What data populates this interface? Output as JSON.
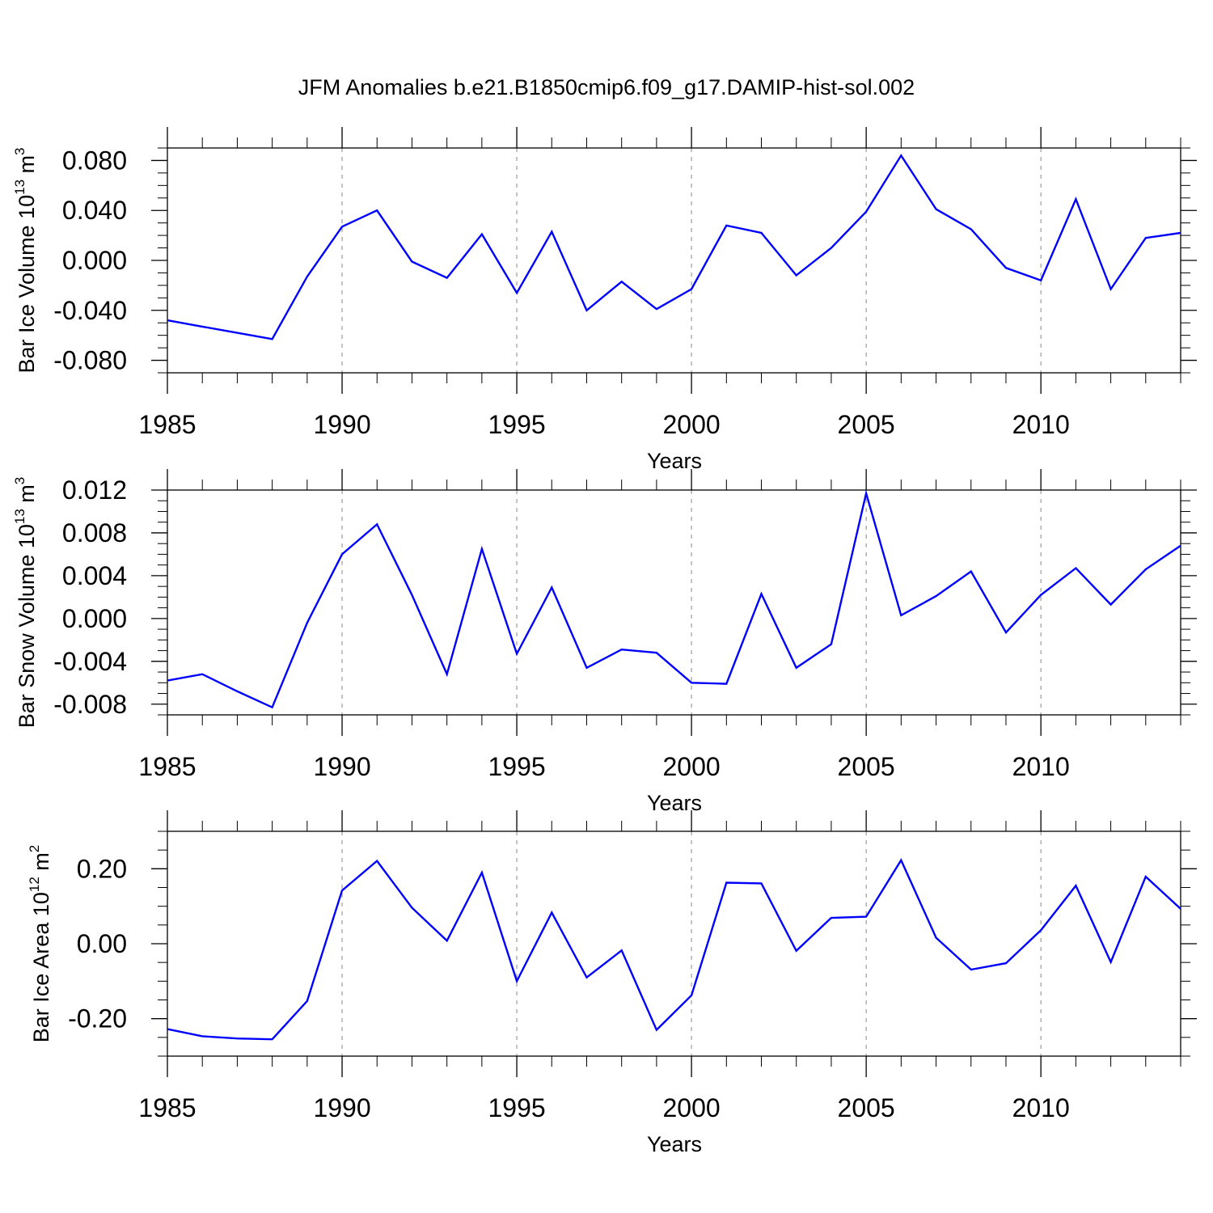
{
  "title": "JFM Anomalies b.e21.B1850cmip6.f09_g17.DAMIP-hist-sol.002",
  "colors": {
    "line": "#0000ff",
    "frame": "#000000",
    "grid": "#888888"
  },
  "chart_data": [
    {
      "type": "line",
      "ylabel": {
        "main": "Bar Ice Volume 10",
        "exp": "13",
        "unit_gap": " m",
        "unit_exp": "3"
      },
      "xlabel": "Years",
      "xlim": [
        1985,
        2014
      ],
      "ylim": [
        -0.09,
        0.09
      ],
      "xticks": [
        1985,
        1990,
        1995,
        2000,
        2005,
        2010
      ],
      "xtick_labels": [
        "1985",
        "1990",
        "1995",
        "2000",
        "2005",
        "2010"
      ],
      "yticks": [
        -0.08,
        -0.04,
        0.0,
        0.04,
        0.08
      ],
      "ytick_labels": [
        "-0.080",
        "-0.040",
        "0.000",
        "0.040",
        "0.080"
      ],
      "yminor": [
        -0.09,
        -0.07,
        -0.06,
        -0.05,
        -0.03,
        -0.02,
        -0.01,
        0.01,
        0.02,
        0.03,
        0.05,
        0.06,
        0.07,
        0.09
      ],
      "grid_x": [
        1990,
        1995,
        2000,
        2005,
        2010
      ],
      "x": [
        1985,
        1986,
        1987,
        1988,
        1989,
        1990,
        1991,
        1992,
        1993,
        1994,
        1995,
        1996,
        1997,
        1998,
        1999,
        2000,
        2001,
        2002,
        2003,
        2004,
        2005,
        2006,
        2007,
        2008,
        2009,
        2010,
        2011,
        2012,
        2013,
        2014
      ],
      "values": [
        -0.048,
        -0.053,
        -0.058,
        -0.063,
        -0.013,
        0.027,
        0.04,
        -0.001,
        -0.014,
        0.021,
        -0.026,
        0.023,
        -0.04,
        -0.017,
        -0.039,
        -0.023,
        0.028,
        0.022,
        -0.012,
        0.01,
        0.039,
        0.084,
        0.041,
        0.025,
        -0.006,
        -0.016,
        0.049,
        -0.023,
        0.018,
        0.022
      ]
    },
    {
      "type": "line",
      "ylabel": {
        "main": "Bar Snow Volume 10",
        "exp": "13",
        "unit_gap": " m",
        "unit_exp": "3"
      },
      "xlabel": "Years",
      "xlim": [
        1985,
        2014
      ],
      "ylim": [
        -0.009,
        0.012
      ],
      "xticks": [
        1985,
        1990,
        1995,
        2000,
        2005,
        2010
      ],
      "xtick_labels": [
        "1985",
        "1990",
        "1995",
        "2000",
        "2005",
        "2010"
      ],
      "yticks": [
        -0.008,
        -0.004,
        0.0,
        0.004,
        0.008,
        0.012
      ],
      "ytick_labels": [
        "-0.008",
        "-0.004",
        "0.000",
        "0.004",
        "0.008",
        "0.012"
      ],
      "yminor": [
        -0.009,
        -0.007,
        -0.006,
        -0.005,
        -0.003,
        -0.002,
        -0.001,
        0.001,
        0.002,
        0.003,
        0.005,
        0.006,
        0.007,
        0.009,
        0.01,
        0.011
      ],
      "grid_x": [
        1990,
        1995,
        2000,
        2005,
        2010
      ],
      "x": [
        1985,
        1986,
        1987,
        1988,
        1989,
        1990,
        1991,
        1992,
        1993,
        1994,
        1995,
        1996,
        1997,
        1998,
        1999,
        2000,
        2001,
        2002,
        2003,
        2004,
        2005,
        2006,
        2007,
        2008,
        2009,
        2010,
        2011,
        2012,
        2013,
        2014
      ],
      "values": [
        -0.0058,
        -0.0052,
        -0.0068,
        -0.0083,
        -0.0004,
        0.006,
        0.0088,
        0.0022,
        -0.0052,
        0.0065,
        -0.0033,
        0.0029,
        -0.0046,
        -0.0029,
        -0.0032,
        -0.006,
        -0.0061,
        0.0023,
        -0.0046,
        -0.0024,
        0.0117,
        0.0003,
        0.0021,
        0.0044,
        -0.0013,
        0.0022,
        0.0047,
        0.0013,
        0.0046,
        0.0068
      ]
    },
    {
      "type": "line",
      "ylabel": {
        "main": "Bar Ice Area 10",
        "exp": "12",
        "unit_gap": " m",
        "unit_exp": "2"
      },
      "xlabel": "Years",
      "xlim": [
        1985,
        2014
      ],
      "ylim": [
        -0.3,
        0.3
      ],
      "xticks": [
        1985,
        1990,
        1995,
        2000,
        2005,
        2010
      ],
      "xtick_labels": [
        "1985",
        "1990",
        "1995",
        "2000",
        "2005",
        "2010"
      ],
      "yticks": [
        -0.2,
        0.0,
        0.2
      ],
      "ytick_labels": [
        "-0.20",
        "0.00",
        "0.20"
      ],
      "yminor": [
        -0.3,
        -0.25,
        -0.15,
        -0.1,
        -0.05,
        0.05,
        0.1,
        0.15,
        0.25,
        0.3
      ],
      "grid_x": [
        1990,
        1995,
        2000,
        2005,
        2010
      ],
      "x": [
        1985,
        1986,
        1987,
        1988,
        1989,
        1990,
        1991,
        1992,
        1993,
        1994,
        1995,
        1996,
        1997,
        1998,
        1999,
        2000,
        2001,
        2002,
        2003,
        2004,
        2005,
        2006,
        2007,
        2008,
        2009,
        2010,
        2011,
        2012,
        2013,
        2014
      ],
      "values": [
        -0.228,
        -0.247,
        -0.253,
        -0.255,
        -0.153,
        0.142,
        0.221,
        0.096,
        0.008,
        0.19,
        -0.1,
        0.083,
        -0.09,
        -0.018,
        -0.23,
        -0.138,
        0.163,
        0.161,
        -0.019,
        0.069,
        0.072,
        0.223,
        0.016,
        -0.069,
        -0.052,
        0.036,
        0.155,
        -0.049,
        0.179,
        0.093
      ]
    }
  ]
}
